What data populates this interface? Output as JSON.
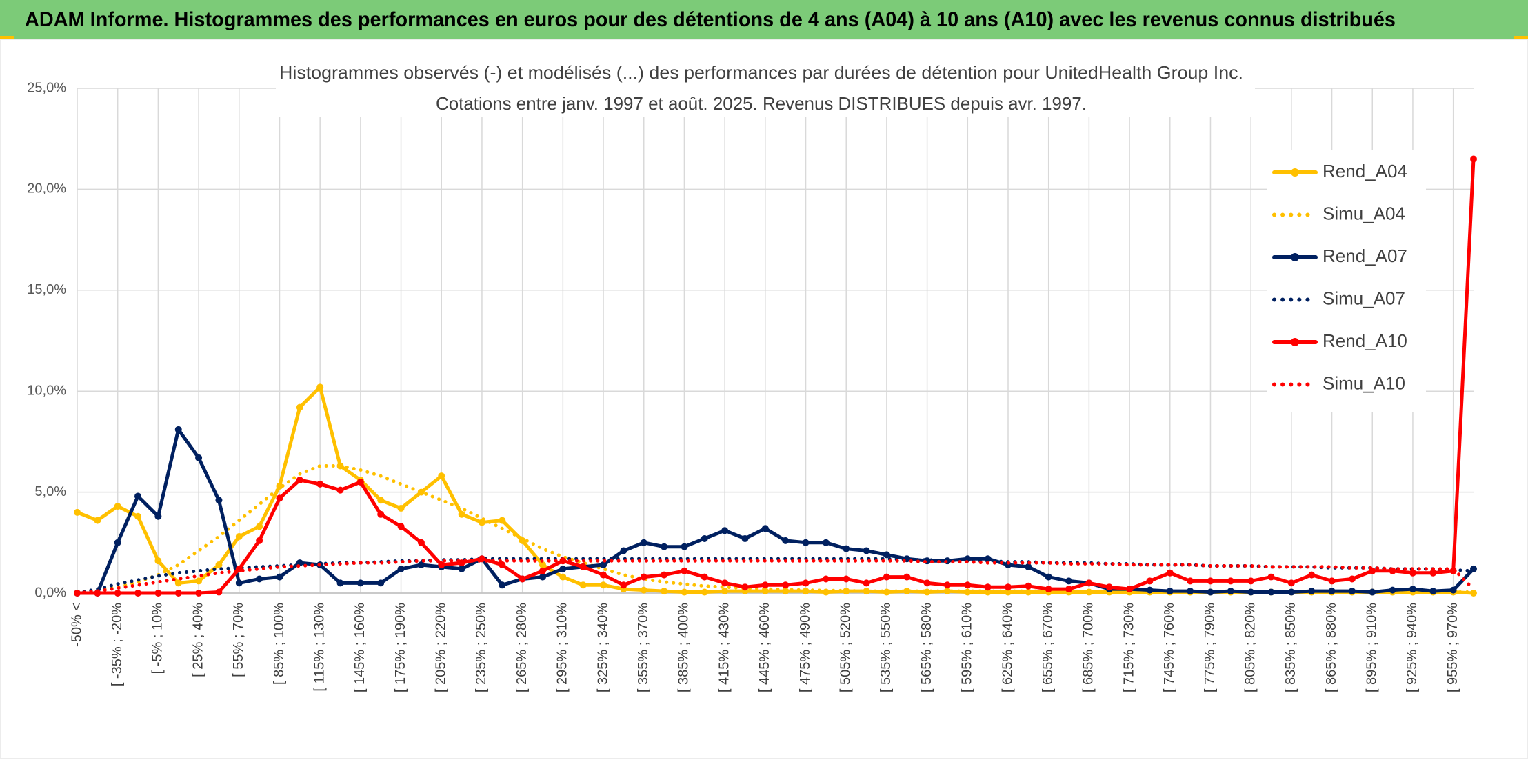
{
  "header": {
    "title": "ADAM Informe. Histogrammes des performances en euros pour des détentions de 4 ans (A04) à 10 ans (A10) avec les revenus connus distribués"
  },
  "chart_data": {
    "type": "line",
    "title": "Histogrammes observés (-) et modélisés (...) des performances par durées de détention pour UnitedHealth Group Inc.",
    "subtitle": "Cotations entre janv. 1997 et août. 2025. Revenus DISTRIBUES depuis avr. 1997.",
    "categories": [
      "-50% <",
      null,
      "[ -35% ; -20%",
      null,
      "[ -5% ; 10%",
      null,
      "[ 25% ; 40%",
      null,
      "[ 55% ; 70%",
      null,
      "[ 85% ; 100%",
      null,
      "[ 115% ; 130%",
      null,
      "[ 145% ; 160%",
      null,
      "[ 175% ; 190%",
      null,
      "[ 205% ; 220%",
      null,
      "[ 235% ; 250%",
      null,
      "[ 265% ; 280%",
      null,
      "[ 295% ; 310%",
      null,
      "[ 325% ; 340%",
      null,
      "[ 355% ; 370%",
      null,
      "[ 385% ; 400%",
      null,
      "[ 415% ; 430%",
      null,
      "[ 445% ; 460%",
      null,
      "[ 475% ; 490%",
      null,
      "[ 505% ; 520%",
      null,
      "[ 535% ; 550%",
      null,
      "[ 565% ; 580%",
      null,
      "[ 595% ; 610%",
      null,
      "[ 625% ; 640%",
      null,
      "[ 655% ; 670%",
      null,
      "[ 685% ; 700%",
      null,
      "[ 715% ; 730%",
      null,
      "[ 745% ; 760%",
      null,
      "[ 775% ; 790%",
      null,
      "[ 805% ; 820%",
      null,
      "[ 835% ; 850%",
      null,
      "[ 865% ; 880%",
      null,
      "[ 895% ; 910%",
      null,
      "[ 925% ; 940%",
      null,
      "[ 955% ; 970%",
      null
    ],
    "series": [
      {
        "name": "Rend_A04",
        "color": "#ffc000",
        "style": "solid",
        "marker": true,
        "values": [
          4.0,
          3.6,
          4.3,
          3.8,
          1.6,
          0.5,
          0.6,
          1.4,
          2.8,
          3.3,
          5.3,
          9.2,
          10.2,
          6.3,
          5.6,
          4.6,
          4.2,
          5.0,
          5.8,
          3.9,
          3.5,
          3.6,
          2.6,
          1.4,
          0.8,
          0.4,
          0.4,
          0.2,
          0.15,
          0.1,
          0.05,
          0.05,
          0.1,
          0.1,
          0.1,
          0.1,
          0.1,
          0.05,
          0.1,
          0.1,
          0.05,
          0.1,
          0.05,
          0.1,
          0.05,
          0.05,
          0.05,
          0.05,
          0.05,
          0.05,
          0.05,
          0.05,
          0.05,
          0.05,
          0.05,
          0.05,
          0.05,
          0.05,
          0.05,
          0.05,
          0.05,
          0.05,
          0.05,
          0.05,
          0.05,
          0.05,
          0.05,
          0.05,
          0.05,
          0.0
        ]
      },
      {
        "name": "Simu_A04",
        "color": "#ffc000",
        "style": "dotted",
        "marker": false,
        "values": [
          0.0,
          0.15,
          0.3,
          0.55,
          0.9,
          1.4,
          2.1,
          2.8,
          3.6,
          4.4,
          5.2,
          5.9,
          6.3,
          6.3,
          6.1,
          5.8,
          5.4,
          5.0,
          4.6,
          4.2,
          3.7,
          3.2,
          2.7,
          2.2,
          1.8,
          1.5,
          1.2,
          0.9,
          0.7,
          0.55,
          0.45,
          0.35,
          0.3,
          0.25,
          0.2,
          0.18,
          0.15,
          0.13,
          0.12,
          0.1,
          0.1,
          0.1,
          0.1,
          0.1,
          0.1,
          0.1,
          0.1,
          0.1,
          0.1,
          0.1,
          0.08,
          0.08,
          0.08,
          0.08,
          0.08,
          0.08,
          0.08,
          0.08,
          0.08,
          0.08,
          0.05,
          0.05,
          0.05,
          0.05,
          0.05,
          0.05,
          0.05,
          0.05,
          0.05,
          0.05
        ]
      },
      {
        "name": "Rend_A07",
        "color": "#002060",
        "style": "solid",
        "marker": true,
        "values": [
          0.0,
          0.0,
          2.5,
          4.8,
          3.8,
          8.1,
          6.7,
          4.6,
          0.5,
          0.7,
          0.8,
          1.5,
          1.4,
          0.5,
          0.5,
          0.5,
          1.2,
          1.4,
          1.3,
          1.2,
          1.7,
          0.4,
          0.7,
          0.8,
          1.2,
          1.3,
          1.4,
          2.1,
          2.5,
          2.3,
          2.3,
          2.7,
          3.1,
          2.7,
          3.2,
          2.6,
          2.5,
          2.5,
          2.2,
          2.1,
          1.9,
          1.7,
          1.6,
          1.6,
          1.7,
          1.7,
          1.4,
          1.3,
          0.8,
          0.6,
          0.5,
          0.2,
          0.2,
          0.15,
          0.1,
          0.1,
          0.05,
          0.1,
          0.05,
          0.05,
          0.05,
          0.1,
          0.1,
          0.1,
          0.05,
          0.15,
          0.2,
          0.1,
          0.15,
          1.2
        ]
      },
      {
        "name": "Simu_A07",
        "color": "#002060",
        "style": "dotted",
        "marker": false,
        "values": [
          0.0,
          0.2,
          0.45,
          0.65,
          0.85,
          1.0,
          1.1,
          1.2,
          1.25,
          1.3,
          1.35,
          1.4,
          1.45,
          1.5,
          1.5,
          1.55,
          1.6,
          1.6,
          1.65,
          1.65,
          1.7,
          1.7,
          1.7,
          1.7,
          1.7,
          1.7,
          1.7,
          1.7,
          1.7,
          1.7,
          1.7,
          1.7,
          1.7,
          1.7,
          1.7,
          1.7,
          1.7,
          1.7,
          1.7,
          1.7,
          1.7,
          1.65,
          1.65,
          1.6,
          1.6,
          1.6,
          1.55,
          1.55,
          1.5,
          1.5,
          1.5,
          1.45,
          1.45,
          1.4,
          1.4,
          1.4,
          1.35,
          1.35,
          1.35,
          1.3,
          1.3,
          1.3,
          1.25,
          1.25,
          1.25,
          1.2,
          1.2,
          1.2,
          1.15,
          1.1
        ]
      },
      {
        "name": "Rend_A10",
        "color": "#ff0000",
        "style": "solid",
        "marker": true,
        "values": [
          0,
          0,
          0,
          0,
          0,
          0,
          0,
          0.05,
          1.2,
          2.6,
          4.7,
          5.6,
          5.4,
          5.1,
          5.5,
          3.9,
          3.3,
          2.5,
          1.4,
          1.5,
          1.7,
          1.4,
          0.7,
          1.1,
          1.6,
          1.3,
          0.9,
          0.4,
          0.8,
          0.9,
          1.1,
          0.8,
          0.5,
          0.3,
          0.4,
          0.4,
          0.5,
          0.7,
          0.7,
          0.5,
          0.8,
          0.8,
          0.5,
          0.4,
          0.4,
          0.3,
          0.3,
          0.35,
          0.2,
          0.2,
          0.5,
          0.3,
          0.2,
          0.6,
          1.0,
          0.6,
          0.6,
          0.6,
          0.6,
          0.8,
          0.5,
          0.9,
          0.6,
          0.7,
          1.1,
          1.1,
          1.0,
          1.0,
          1.1,
          21.5
        ]
      },
      {
        "name": "Simu_A10",
        "color": "#ff0000",
        "style": "dotted",
        "marker": false,
        "values": [
          0.0,
          0.1,
          0.25,
          0.4,
          0.55,
          0.7,
          0.85,
          1.0,
          1.1,
          1.2,
          1.3,
          1.35,
          1.4,
          1.45,
          1.5,
          1.5,
          1.55,
          1.6,
          1.6,
          1.6,
          1.6,
          1.6,
          1.6,
          1.6,
          1.6,
          1.6,
          1.6,
          1.6,
          1.6,
          1.6,
          1.6,
          1.6,
          1.6,
          1.6,
          1.6,
          1.6,
          1.6,
          1.6,
          1.6,
          1.6,
          1.6,
          1.6,
          1.55,
          1.55,
          1.55,
          1.5,
          1.5,
          1.5,
          1.5,
          1.45,
          1.45,
          1.45,
          1.4,
          1.4,
          1.4,
          1.4,
          1.35,
          1.35,
          1.35,
          1.3,
          1.3,
          1.3,
          1.3,
          1.25,
          1.25,
          1.2,
          1.2,
          1.2,
          1.2,
          0.2
        ]
      }
    ],
    "ylim": [
      0,
      25
    ],
    "yticks": [
      {
        "value": 0,
        "label": "0,0%"
      },
      {
        "value": 5,
        "label": "5,0%"
      },
      {
        "value": 10,
        "label": "10,0%"
      },
      {
        "value": 15,
        "label": "15,0%"
      },
      {
        "value": 20,
        "label": "20,0%"
      },
      {
        "value": 25,
        "label": "25,0%"
      }
    ],
    "grid": true,
    "legend": "right"
  }
}
